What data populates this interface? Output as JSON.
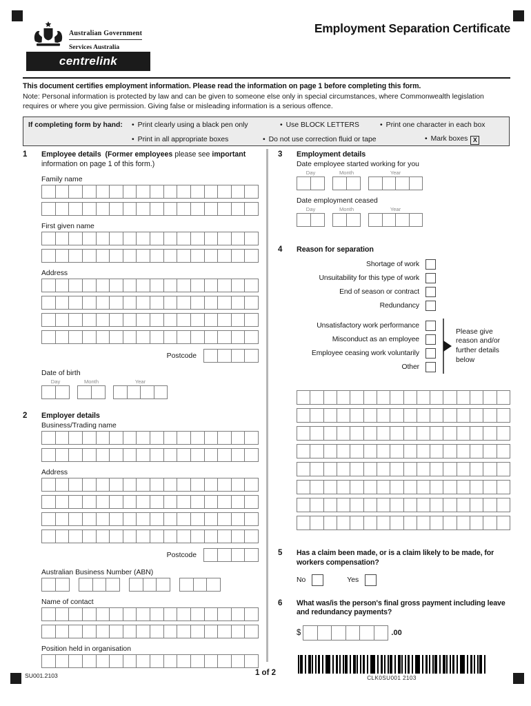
{
  "page": {
    "title": "Employment Separation Certificate",
    "page_number": "1 of 2",
    "form_code": "SU001.2103"
  },
  "logo": {
    "gov": "Australian Government",
    "agency": "Services Australia",
    "brand": "centrelink"
  },
  "intro": {
    "certify": "This document certifies employment information. Please read the information on page 1 before completing this form.",
    "note": "Note: Personal information is protected by law and can be given to someone else only in special circumstances, where Commonwealth legislation requires or where you give permission. Giving false or misleading information is a serious offence."
  },
  "hand": {
    "label": "If completing form by hand:",
    "row1": [
      "Print clearly using a black pen only",
      "Use BLOCK LETTERS",
      "Print one character in each box"
    ],
    "row2": [
      "Print in all appropriate boxes",
      "Do not use correction fluid or tape",
      "Mark boxes"
    ],
    "mark": "X"
  },
  "date": {
    "day": "Day",
    "month": "Month",
    "year": "Year"
  },
  "s1": {
    "num": "1",
    "title": "Employee details",
    "note_b1": "(Former employees",
    "note_r1": " please see ",
    "note_b2": "important",
    "note_r2": "information on page 1 of this form.)",
    "family": "Family name",
    "first": "First given name",
    "address": "Address",
    "postcode": "Postcode",
    "dob": "Date of birth"
  },
  "s2": {
    "num": "2",
    "title": "Employer details",
    "business": "Business/Trading name",
    "address": "Address",
    "postcode": "Postcode",
    "abn": "Australian Business Number (ABN)",
    "contact": "Name of contact",
    "position": "Position held in organisation"
  },
  "s3": {
    "num": "3",
    "title": "Employment details",
    "started": "Date employee started working for you",
    "ceased": "Date employment ceased"
  },
  "s4": {
    "num": "4",
    "title": "Reason for separation",
    "group_a": [
      "Shortage of work",
      "Unsuitability for this type of work",
      "End of season or contract",
      "Redundancy"
    ],
    "group_b": [
      "Unsatisfactory work performance",
      "Misconduct as an employee",
      "Employee ceasing work voluntarily",
      "Other"
    ],
    "aside": "Please give reason and/or further details below"
  },
  "s5": {
    "num": "5",
    "title": "Has a claim been made, or is a claim likely to be made, for workers compensation?",
    "no": "No",
    "yes": "Yes"
  },
  "s6": {
    "num": "6",
    "title": "What was/is the person's final gross payment including leave and redundancy payments?",
    "currency": "$",
    "cents": ".00"
  },
  "barcode": {
    "text": "CLK0SU001 2103"
  },
  "boxes": {
    "row16": 16,
    "postcode": 4,
    "day": 2,
    "month": 2,
    "year": 4,
    "abn": [
      2,
      3,
      3,
      3
    ],
    "amount": 6
  },
  "colors": {
    "ink": "#161616",
    "box_border": "#7c7c7c",
    "divider": "#b5b5b5",
    "handbox_bg": "#ececec"
  }
}
